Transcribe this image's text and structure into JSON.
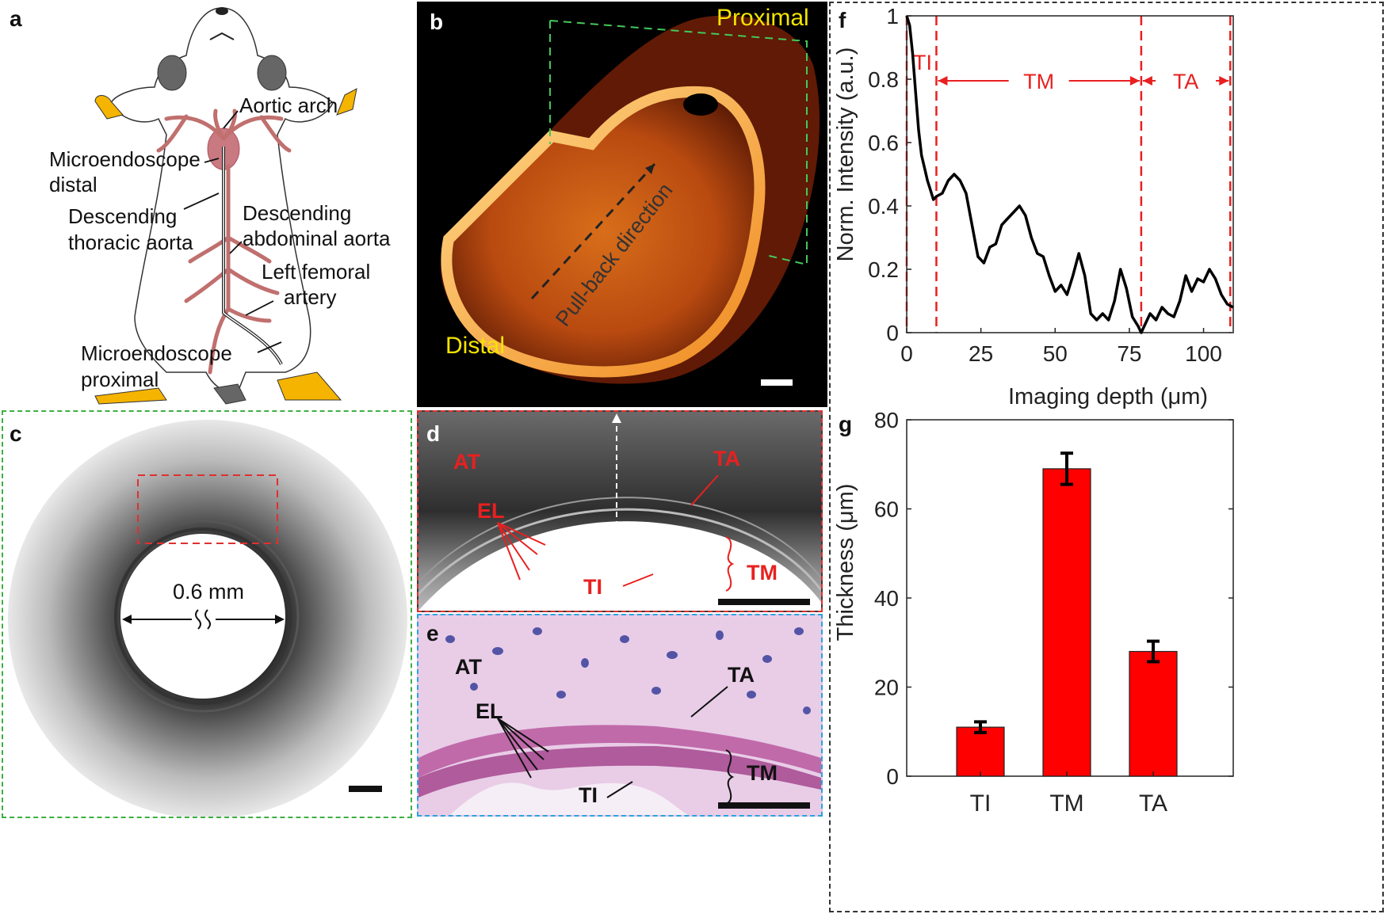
{
  "panel_letters": {
    "a": "a",
    "b": "b",
    "c": "c",
    "d": "d",
    "e": "e",
    "f": "f",
    "g": "g"
  },
  "panel_a": {
    "aortic_arch": "Aortic arch",
    "microendoscope_distal_1": "Microendoscope",
    "microendoscope_distal_2": "distal",
    "desc_thoracic_1": "Descending",
    "desc_thoracic_2": "thoracic aorta",
    "desc_abdominal_1": "Descending",
    "desc_abdominal_2": "abdominal aorta",
    "left_femoral_1": "Left femoral",
    "left_femoral_2": "artery",
    "microendoscope_proximal_1": "Microendoscope",
    "microendoscope_proximal_2": "proximal"
  },
  "panel_b": {
    "proximal": "Proximal",
    "distal": "Distal",
    "pullback": "Pull-back direction"
  },
  "panel_c": {
    "diameter": "0.6 mm"
  },
  "panel_d": {
    "at": "AT",
    "el": "EL",
    "ta": "TA",
    "ti": "TI",
    "tm": "TM"
  },
  "panel_e": {
    "at": "AT",
    "el": "EL",
    "ta": "TA",
    "ti": "TI",
    "tm": "TM"
  },
  "colors": {
    "red": "#e82020",
    "green": "#3cb043",
    "blue": "#29a3e0",
    "yellow": "#f5e400"
  },
  "chart_data": [
    {
      "type": "line",
      "id": "f",
      "xlabel": "Imaging depth (μm)",
      "ylabel": "Norm. Intensity (a.u.)",
      "xlim": [
        0,
        110
      ],
      "ylim": [
        0,
        1
      ],
      "xticks": [
        0,
        25,
        50,
        75,
        100
      ],
      "xtick_labels": [
        "0",
        "25",
        "50",
        "75",
        "100"
      ],
      "yticks": [
        0,
        0.2,
        0.4,
        0.6,
        0.8,
        1
      ],
      "ytick_labels": [
        "0",
        "0.2",
        "0.4",
        "0.6",
        "0.8",
        "1"
      ],
      "region_boundaries": [
        0,
        10,
        79,
        109
      ],
      "regions": [
        "TI",
        "TM",
        "TA"
      ],
      "x": [
        0,
        1,
        2,
        3,
        4,
        5,
        6,
        7,
        8,
        9,
        10,
        12,
        14,
        16,
        18,
        20,
        22,
        24,
        26,
        28,
        30,
        32,
        34,
        36,
        38,
        40,
        42,
        44,
        46,
        48,
        50,
        52,
        54,
        56,
        58,
        60,
        62,
        64,
        66,
        68,
        70,
        72,
        74,
        76,
        78,
        79,
        80,
        82,
        84,
        86,
        88,
        90,
        92,
        94,
        96,
        98,
        100,
        102,
        104,
        106,
        108,
        110
      ],
      "y": [
        1.0,
        0.97,
        0.88,
        0.76,
        0.64,
        0.56,
        0.52,
        0.48,
        0.45,
        0.42,
        0.43,
        0.44,
        0.48,
        0.5,
        0.48,
        0.44,
        0.34,
        0.24,
        0.22,
        0.27,
        0.28,
        0.34,
        0.36,
        0.38,
        0.4,
        0.37,
        0.3,
        0.25,
        0.24,
        0.18,
        0.13,
        0.15,
        0.12,
        0.18,
        0.25,
        0.18,
        0.06,
        0.04,
        0.06,
        0.04,
        0.1,
        0.2,
        0.14,
        0.05,
        0.02,
        0.0,
        0.02,
        0.06,
        0.04,
        0.08,
        0.06,
        0.05,
        0.1,
        0.18,
        0.13,
        0.17,
        0.16,
        0.2,
        0.17,
        0.12,
        0.09,
        0.08
      ]
    },
    {
      "type": "bar",
      "id": "g",
      "categories": [
        "TI",
        "TM",
        "TA"
      ],
      "values": [
        11,
        69,
        28
      ],
      "errors": [
        1.2,
        3.5,
        2.3
      ],
      "ylabel": "Thickness (μm)",
      "xlabel": "",
      "ylim": [
        0,
        80
      ],
      "yticks": [
        0,
        20,
        40,
        60,
        80
      ],
      "ytick_labels": [
        "0",
        "20",
        "40",
        "60",
        "80"
      ],
      "bar_color": "#ff0000"
    }
  ]
}
